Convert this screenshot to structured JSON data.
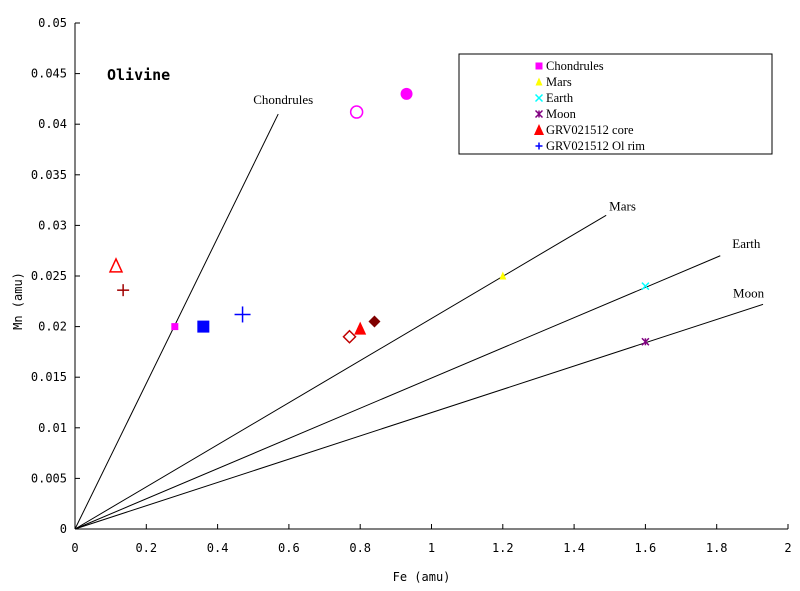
{
  "chart_data": {
    "type": "scatter",
    "title": "Olivine",
    "xlabel": "Fe (amu)",
    "ylabel": "Mn (amu)",
    "xlim": [
      0,
      2
    ],
    "ylim": [
      0,
      0.05
    ],
    "xticks": [
      0,
      0.2,
      0.4,
      0.6,
      0.8,
      1,
      1.2,
      1.4,
      1.6,
      1.8,
      2
    ],
    "xtick_labels": [
      "0",
      "0.2",
      "0.4",
      "0.6",
      "0.8",
      "1",
      "1.2",
      "1.4",
      "1.6",
      "1.8",
      "2"
    ],
    "yticks": [
      0,
      0.005,
      0.01,
      0.015,
      0.02,
      0.025,
      0.03,
      0.035,
      0.04,
      0.045,
      0.05
    ],
    "ytick_labels": [
      "0",
      "0.005",
      "0.01",
      "0.015",
      "0.02",
      "0.025",
      "0.03",
      "0.035",
      "0.04",
      "0.045",
      "0.05"
    ],
    "grid": false,
    "legend_position": "top-right",
    "reference_lines": [
      {
        "label": "Chondrules",
        "x": [
          0,
          0.57
        ],
        "y": [
          0,
          0.041
        ]
      },
      {
        "label": "Mars",
        "x": [
          0,
          1.49
        ],
        "y": [
          0,
          0.031
        ]
      },
      {
        "label": "Earth",
        "x": [
          0,
          1.81
        ],
        "y": [
          0,
          0.027
        ]
      },
      {
        "label": "Moon",
        "x": [
          0,
          1.93
        ],
        "y": [
          0,
          0.0222
        ]
      }
    ],
    "series": [
      {
        "name": "Chondrules",
        "marker": "square",
        "color": "#ff00ff",
        "points": [
          {
            "x": 0.28,
            "y": 0.02
          }
        ]
      },
      {
        "name": "Mars",
        "marker": "triangle",
        "color": "#ffff00",
        "points": [
          {
            "x": 1.2,
            "y": 0.025
          }
        ]
      },
      {
        "name": "Earth",
        "marker": "x",
        "color": "#00ffff",
        "points": [
          {
            "x": 1.6,
            "y": 0.024
          }
        ]
      },
      {
        "name": "Moon",
        "marker": "star",
        "color": "#800080",
        "points": [
          {
            "x": 1.6,
            "y": 0.0185
          }
        ]
      },
      {
        "name": "GRV021512 core",
        "marker": "triangle",
        "color": "#ff0000",
        "points": [
          {
            "x": 0.8,
            "y": 0.0198
          }
        ]
      },
      {
        "name": "GRV021512 Ol rim",
        "marker": "plus",
        "color": "#0000ff",
        "points": [
          {
            "x": 0.47,
            "y": 0.0212
          }
        ]
      }
    ],
    "extra_points": [
      {
        "marker": "circle-filled",
        "color": "#ff00ff",
        "x": 0.93,
        "y": 0.043
      },
      {
        "marker": "circle-open",
        "color": "#ff00ff",
        "x": 0.79,
        "y": 0.0412
      },
      {
        "marker": "triangle-open",
        "color": "#ff0000",
        "x": 0.115,
        "y": 0.026
      },
      {
        "marker": "plus",
        "color": "#a00000",
        "x": 0.135,
        "y": 0.0236
      },
      {
        "marker": "square-filled",
        "color": "#0000ff",
        "x": 0.36,
        "y": 0.02
      },
      {
        "marker": "diamond-open",
        "color": "#c00000",
        "x": 0.77,
        "y": 0.019
      },
      {
        "marker": "diamond-filled",
        "color": "#800000",
        "x": 0.84,
        "y": 0.0205
      }
    ]
  }
}
